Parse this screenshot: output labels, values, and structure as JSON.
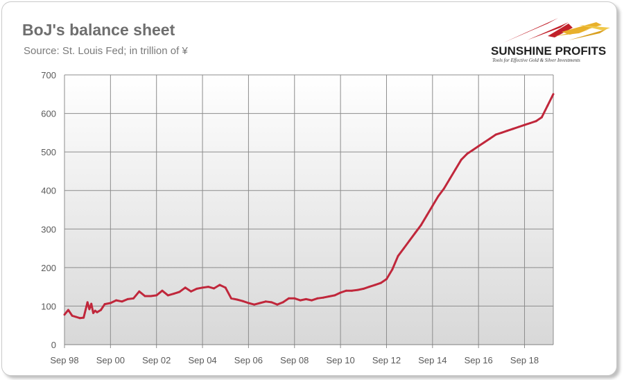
{
  "title": "BoJ's balance sheet",
  "subtitle": "Source: St. Louis Fed; in trillion of ¥",
  "logo": {
    "name": "SUNSHINE PROFITS",
    "tagline": "Tools for Effective Gold & Silver Investments"
  },
  "colors": {
    "line": "#c0273b",
    "plot_background_top": "#ffffff",
    "plot_background_bottom": "#d8d8d8",
    "grid": "#8c8c8c",
    "logo_accent": "#c1202a",
    "logo_gold": "#e8b02a"
  },
  "chart_data": {
    "type": "line",
    "title": "BoJ's balance sheet",
    "subtitle": "Source: St. Louis Fed; in trillion of ¥",
    "xlabel": "",
    "ylabel": "",
    "ylim": [
      0,
      700
    ],
    "yticks": [
      0,
      100,
      200,
      300,
      400,
      500,
      600,
      700
    ],
    "xtick_labels": [
      "Sep 98",
      "Sep 00",
      "Sep 02",
      "Sep 04",
      "Sep 06",
      "Sep 08",
      "Sep 10",
      "Sep 12",
      "Sep 14",
      "Sep 16",
      "Sep 18"
    ],
    "xlim": [
      "Sep 98",
      "Dec 19"
    ],
    "grid": true,
    "legend": "none",
    "series": [
      {
        "x": [
          "1998-09",
          "1998-11",
          "1999-01",
          "1999-03",
          "1999-05",
          "1999-07",
          "1999-09",
          "1999-10",
          "1999-11",
          "1999-12",
          "2000-01",
          "2000-02",
          "2000-04",
          "2000-06",
          "2000-09",
          "2000-12",
          "2001-03",
          "2001-06",
          "2001-09",
          "2001-12",
          "2002-03",
          "2002-06",
          "2002-09",
          "2002-12",
          "2003-03",
          "2003-06",
          "2003-09",
          "2003-12",
          "2004-03",
          "2004-06",
          "2004-09",
          "2004-12",
          "2005-03",
          "2005-06",
          "2005-09",
          "2005-12",
          "2006-03",
          "2006-06",
          "2006-09",
          "2006-12",
          "2007-03",
          "2007-06",
          "2007-09",
          "2007-12",
          "2008-03",
          "2008-06",
          "2008-09",
          "2008-12",
          "2009-03",
          "2009-06",
          "2009-09",
          "2009-12",
          "2010-03",
          "2010-06",
          "2010-09",
          "2010-12",
          "2011-03",
          "2011-06",
          "2011-09",
          "2011-12",
          "2012-03",
          "2012-06",
          "2012-09",
          "2012-12",
          "2013-03",
          "2013-06",
          "2013-09",
          "2013-12",
          "2014-03",
          "2014-06",
          "2014-09",
          "2014-12",
          "2015-03",
          "2015-06",
          "2015-09",
          "2015-12",
          "2016-03",
          "2016-06",
          "2016-09",
          "2016-12",
          "2017-03",
          "2017-06",
          "2017-09",
          "2017-12",
          "2018-03",
          "2018-06",
          "2018-09",
          "2018-12",
          "2019-03",
          "2019-06",
          "2019-09",
          "2019-12"
        ],
        "values": [
          78,
          90,
          75,
          72,
          69,
          70,
          110,
          92,
          106,
          82,
          88,
          84,
          90,
          105,
          108,
          115,
          112,
          118,
          120,
          138,
          126,
          126,
          128,
          140,
          128,
          132,
          137,
          148,
          138,
          145,
          148,
          150,
          146,
          155,
          148,
          120,
          117,
          113,
          108,
          104,
          108,
          112,
          110,
          104,
          110,
          120,
          120,
          115,
          118,
          115,
          120,
          122,
          125,
          128,
          135,
          140,
          140,
          142,
          145,
          150,
          155,
          160,
          170,
          195,
          230,
          250,
          270,
          290,
          310,
          335,
          360,
          385,
          405,
          430,
          455,
          480,
          495,
          505,
          515,
          525,
          535,
          545,
          550,
          555,
          560,
          565,
          570,
          575,
          580,
          590,
          620,
          650
        ]
      }
    ]
  }
}
